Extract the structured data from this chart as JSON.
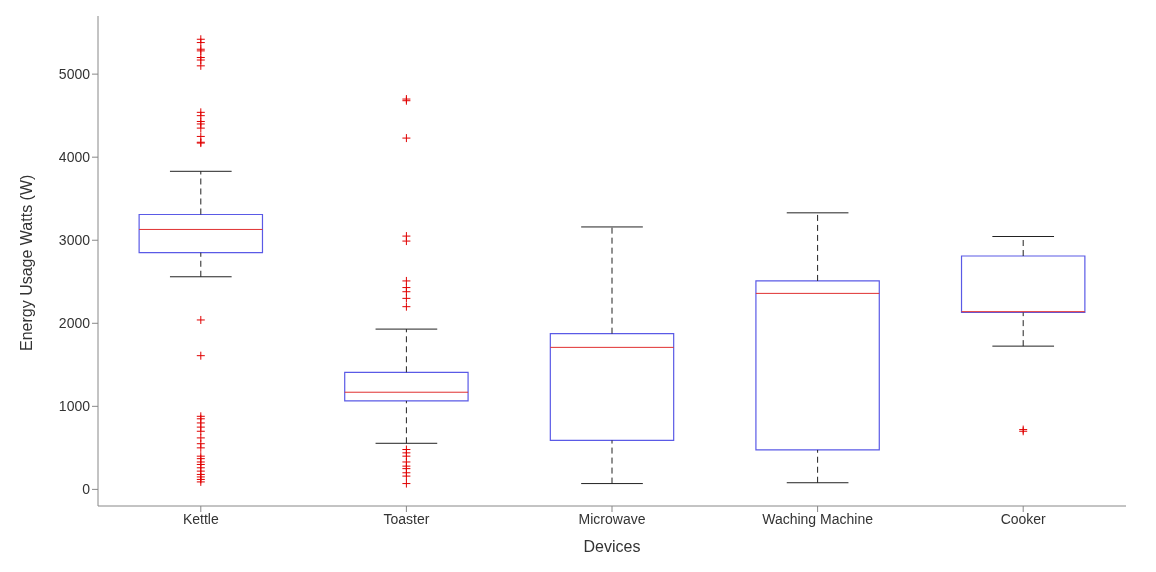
{
  "chart_data": {
    "type": "box",
    "categories": [
      "Kettle",
      "Toaster",
      "Microwave",
      "Waching Machine",
      "Cooker"
    ],
    "xlabel": "Devices",
    "ylabel": "Energy Usage Watts (W)",
    "ylim": [
      -200,
      5700
    ],
    "yticks": [
      0,
      1000,
      2000,
      3000,
      4000,
      5000
    ],
    "grid": false,
    "legend": false,
    "marker": "cross",
    "series": [
      {
        "color": "#5a5ae6",
        "boxes": [
          {
            "low": 2560,
            "q1": 2850,
            "median": 3130,
            "q3": 3310,
            "high": 3830,
            "outliers": [
              5420,
              5380,
              5300,
              5280,
              5200,
              5170,
              5100,
              4540,
              4500,
              4430,
              4400,
              4350,
              4250,
              4180,
              4170,
              2040,
              1610,
              880,
              850,
              800,
              750,
              700,
              620,
              550,
              500,
              400,
              370,
              330,
              300,
              260,
              220,
              180,
              150,
              120,
              90
            ]
          },
          {
            "low": 555,
            "q1": 1065,
            "median": 1170,
            "q3": 1410,
            "high": 1930,
            "outliers": [
              4700,
              4680,
              4230,
              3050,
              2990,
              2510,
              2430,
              2380,
              2300,
              2200,
              480,
              440,
              400,
              330,
              280,
              250,
              200,
              160,
              70
            ]
          },
          {
            "low": 70,
            "q1": 590,
            "median": 1710,
            "q3": 1875,
            "high": 3160
          },
          {
            "low": 80,
            "q1": 475,
            "median": 2360,
            "q3": 2510,
            "high": 3330
          },
          {
            "low": 1725,
            "q1": 2130,
            "median": 2140,
            "q3": 2810,
            "high": 3045,
            "outliers": [
              720,
              700
            ]
          }
        ]
      }
    ]
  }
}
